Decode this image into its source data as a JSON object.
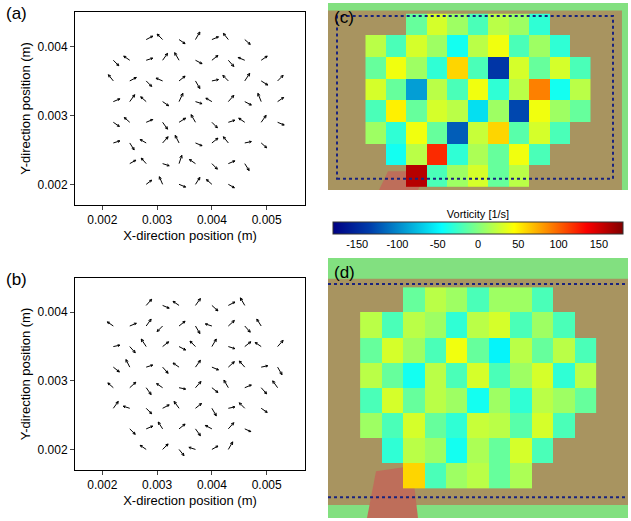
{
  "chart_data": [
    {
      "type": "quiver",
      "title": "(a)",
      "xlabel": "X-direction position (m)",
      "ylabel": "Y-direction position (m)",
      "xlim": [
        0.0015,
        0.0057
      ],
      "ylim": [
        0.0017,
        0.0045
      ],
      "xticks": [
        0.002,
        0.003,
        0.004,
        0.005
      ],
      "yticks": [
        0.002,
        0.003,
        0.004
      ],
      "grid": false,
      "color": "#000000",
      "x": [
        0.0022,
        0.0025,
        0.0028,
        0.0031,
        0.0034,
        0.0037,
        0.004,
        0.0043,
        0.0046,
        0.0049,
        0.0052
      ],
      "y": [
        0.002,
        0.0023,
        0.0026,
        0.0029,
        0.0032,
        0.0035,
        0.0038,
        0.0041
      ],
      "u": [
        [
          null,
          null,
          0.0001,
          -6e-05,
          0.00012,
          8e-05,
          -0.0001,
          0.00011,
          null,
          null,
          null
        ],
        [
          null,
          0.00011,
          -9e-05,
          0.00012,
          5e-05,
          -0.00011,
          0.0001,
          0.00012,
          8e-05,
          null,
          null
        ],
        [
          0.00012,
          8e-05,
          -0.00011,
          0.0001,
          -7e-05,
          0.00012,
          0.00011,
          -9e-05,
          0.00012,
          0.0001,
          null
        ],
        [
          0.00011,
          -0.0001,
          0.00012,
          9e-05,
          0.00012,
          -8e-05,
          0.0001,
          0.00012,
          -0.00011,
          9e-05,
          0.00012
        ],
        [
          0.00012,
          9e-05,
          -0.0001,
          0.00011,
          7e-05,
          0.00012,
          -0.00011,
          0.0001,
          0.00012,
          -6e-05,
          0.00011
        ],
        [
          -9e-05,
          0.00012,
          0.0001,
          -0.00012,
          0.00011,
          8e-05,
          0.00012,
          -0.0001,
          9e-05,
          0.00012,
          0.0001
        ],
        [
          0.0001,
          -0.00011,
          0.00012,
          9e-05,
          -8e-05,
          0.00012,
          0.00011,
          0.0001,
          -0.00012,
          0.00011,
          null
        ],
        [
          null,
          null,
          0.00012,
          -0.0001,
          0.00011,
          8e-05,
          0.00012,
          -9e-05,
          0.0001,
          null,
          null
        ]
      ],
      "v": [
        [
          null,
          null,
          6e-05,
          0.00011,
          -4e-05,
          0.0001,
          7e-05,
          -5e-05,
          null,
          null,
          null
        ],
        [
          null,
          5e-05,
          8e-05,
          -3e-05,
          0.00012,
          6e-05,
          -8e-05,
          4e-05,
          -0.0001,
          null,
          null
        ],
        [
          3e-05,
          -0.0001,
          5e-05,
          9e-05,
          0.00011,
          -4e-05,
          7e-05,
          9e-05,
          2e-05,
          -7e-05,
          null
        ],
        [
          -6e-05,
          7e-05,
          4e-05,
          -0.0001,
          6e-05,
          0.00011,
          -8e-05,
          3e-05,
          6e-05,
          0.0001,
          -4e-05
        ],
        [
          4e-05,
          0.0001,
          7e-05,
          -6e-05,
          0.00012,
          -3e-05,
          5e-05,
          9e-05,
          -5e-05,
          0.00012,
          6e-05
        ],
        [
          9e-05,
          5e-05,
          -8e-05,
          4e-05,
          7e-05,
          -0.00011,
          2e-05,
          8e-05,
          0.00011,
          -6e-05,
          8e-05
        ],
        [
          -8e-05,
          6e-05,
          3e-05,
          0.0001,
          0.00011,
          -5e-05,
          7e-05,
          -9e-05,
          4e-05,
          6e-05,
          null
        ],
        [
          null,
          null,
          5e-05,
          8e-05,
          -6e-05,
          0.00011,
          4e-05,
          9e-05,
          -7e-05,
          null,
          null
        ]
      ]
    },
    {
      "type": "quiver",
      "title": "(b)",
      "xlabel": "X-direction position (m)",
      "ylabel": "Y-direction position (m)",
      "xlim": [
        0.0015,
        0.0057
      ],
      "ylim": [
        0.0017,
        0.0045
      ],
      "xticks": [
        0.002,
        0.003,
        0.004,
        0.005
      ],
      "yticks": [
        0.002,
        0.003,
        0.004
      ],
      "grid": false,
      "color": "#000000",
      "x": [
        0.0022,
        0.0025,
        0.0028,
        0.0031,
        0.0034,
        0.0037,
        0.004,
        0.0043,
        0.0046,
        0.0049,
        0.0052
      ],
      "y": [
        0.002,
        0.0023,
        0.0026,
        0.0029,
        0.0032,
        0.0035,
        0.0038,
        0.0041
      ],
      "u": [
        [
          null,
          null,
          -0.00011,
          0.0001,
          9e-05,
          -0.00012,
          0.00011,
          8e-05,
          null,
          null,
          null
        ],
        [
          null,
          0.0001,
          0.00012,
          -8e-05,
          0.00011,
          9e-05,
          -0.00012,
          0.0001,
          0.00011,
          null,
          null
        ],
        [
          9e-05,
          -0.00012,
          0.0001,
          0.00012,
          -9e-05,
          0.00011,
          8e-05,
          0.00012,
          -0.0001,
          0.00011,
          null
        ],
        [
          -0.0001,
          0.00011,
          9e-05,
          -0.00011,
          0.00012,
          0.0001,
          0.00011,
          -8e-05,
          0.00012,
          0.0001,
          -9e-05
        ],
        [
          0.00011,
          -7e-05,
          0.00012,
          0.0001,
          -0.00011,
          9e-05,
          0.00012,
          0.00011,
          -0.0001,
          0.00012,
          8e-05
        ],
        [
          0.00012,
          0.0001,
          -9e-05,
          0.00011,
          0.00012,
          -0.0001,
          8e-05,
          0.00012,
          0.00011,
          -0.00011,
          0.0001
        ],
        [
          -0.00011,
          0.00012,
          9e-05,
          -0.0001,
          0.00011,
          8e-05,
          -0.00012,
          0.00011,
          0.0001,
          -8e-05,
          null
        ],
        [
          null,
          null,
          0.0001,
          0.00012,
          -0.00011,
          9e-05,
          0.00011,
          0.00012,
          -8e-05,
          null,
          null
        ]
      ],
      "v": [
        [
          null,
          null,
          6e-05,
          8e-05,
          -9e-05,
          3e-05,
          5e-05,
          0.00011,
          null,
          null,
          null
        ],
        [
          null,
          -8e-05,
          4e-05,
          0.0001,
          7e-05,
          -0.0001,
          5e-05,
          9e-05,
          -4e-05,
          null,
          null
        ],
        [
          0.0001,
          3e-05,
          -8e-05,
          5e-05,
          0.0001,
          7e-05,
          -0.00011,
          2e-05,
          8e-05,
          -6e-05,
          null
        ],
        [
          7e-05,
          8e-05,
          -0.0001,
          6e-05,
          -2e-05,
          9e-05,
          -7e-05,
          0.00011,
          4e-05,
          -9e-05,
          0.0001
        ],
        [
          -7e-05,
          0.00011,
          3e-05,
          -9e-05,
          6e-05,
          0.0001,
          -4e-05,
          8e-05,
          9e-05,
          2e-05,
          -0.00011
        ],
        [
          2e-05,
          -9e-05,
          0.00011,
          7e-05,
          -5e-05,
          8e-05,
          0.00011,
          -3e-05,
          7e-05,
          6e-05,
          9e-05
        ],
        [
          6e-05,
          4e-05,
          0.0001,
          -8e-05,
          7e-05,
          -0.00011,
          3e-05,
          8e-05,
          -9e-05,
          0.0001,
          null
        ],
        [
          null,
          null,
          9e-05,
          -4e-05,
          6e-05,
          0.0001,
          -8e-05,
          5e-05,
          0.00011,
          null,
          null
        ]
      ]
    },
    {
      "type": "heatmap",
      "title": "(c)",
      "tick_labels": false,
      "color": "Jet",
      "xlim": [
        0.0015,
        0.0059
      ],
      "ylim": [
        0.0018,
        0.0044
      ],
      "x": [
        0.0022,
        0.0025,
        0.0028,
        0.0031,
        0.0034,
        0.0037,
        0.004,
        0.0043,
        0.0046,
        0.0049,
        0.0052
      ],
      "y": [
        0.002,
        0.0023,
        0.0026,
        0.0029,
        0.0032,
        0.0035,
        0.0038,
        0.0041
      ],
      "z": [
        [
          null,
          null,
          160,
          -20,
          10,
          30,
          -10,
          20,
          null,
          null,
          null
        ],
        [
          null,
          -40,
          20,
          120,
          -30,
          15,
          -10,
          40,
          -20,
          null,
          null
        ],
        [
          10,
          -30,
          40,
          -10,
          -120,
          25,
          60,
          -15,
          30,
          -20,
          null
        ],
        [
          -20,
          50,
          -10,
          30,
          20,
          -60,
          10,
          -130,
          40,
          10,
          -10
        ],
        [
          30,
          -10,
          -90,
          20,
          -20,
          40,
          -30,
          20,
          90,
          -40,
          20
        ],
        [
          -10,
          40,
          10,
          -30,
          60,
          -20,
          -140,
          30,
          -10,
          30,
          -20
        ],
        [
          20,
          -20,
          30,
          10,
          -40,
          20,
          40,
          -20,
          10,
          -30,
          null
        ],
        [
          null,
          null,
          -10,
          30,
          10,
          -20,
          20,
          10,
          -30,
          null,
          null
        ]
      ],
      "colorbar": {
        "title": "Vorticity [1/s]",
        "range": [
          -180,
          180
        ],
        "ticks": [
          -150,
          -100,
          -50,
          0,
          50,
          100,
          150
        ]
      }
    },
    {
      "type": "heatmap",
      "title": "(d)",
      "tick_labels": false,
      "color": "Jet",
      "xlim": [
        0.0016,
        0.0058
      ],
      "ylim": [
        0.0015,
        0.0046
      ],
      "x": [
        0.0022,
        0.0025,
        0.0028,
        0.0031,
        0.0034,
        0.0037,
        0.004,
        0.0043,
        0.0046,
        0.0049,
        0.0052
      ],
      "y": [
        0.002,
        0.0023,
        0.0026,
        0.0029,
        0.0032,
        0.0035,
        0.0038,
        0.0041
      ],
      "z": [
        [
          null,
          null,
          60,
          -20,
          10,
          20,
          -10,
          15,
          null,
          null,
          null
        ],
        [
          null,
          -30,
          20,
          10,
          -40,
          15,
          -10,
          30,
          -20,
          null,
          null
        ],
        [
          10,
          -20,
          30,
          -10,
          -30,
          25,
          20,
          -15,
          30,
          -20,
          null
        ],
        [
          -20,
          30,
          -10,
          20,
          10,
          -40,
          10,
          -30,
          20,
          10,
          -10
        ],
        [
          20,
          -10,
          -40,
          20,
          -20,
          30,
          -20,
          10,
          30,
          -30,
          20
        ],
        [
          -10,
          30,
          10,
          -20,
          40,
          -10,
          -50,
          20,
          -10,
          20,
          -20
        ],
        [
          20,
          -20,
          20,
          10,
          -30,
          20,
          30,
          -20,
          10,
          -20,
          null
        ],
        [
          null,
          null,
          -10,
          20,
          10,
          -20,
          10,
          10,
          -20,
          null,
          null
        ]
      ]
    }
  ]
}
